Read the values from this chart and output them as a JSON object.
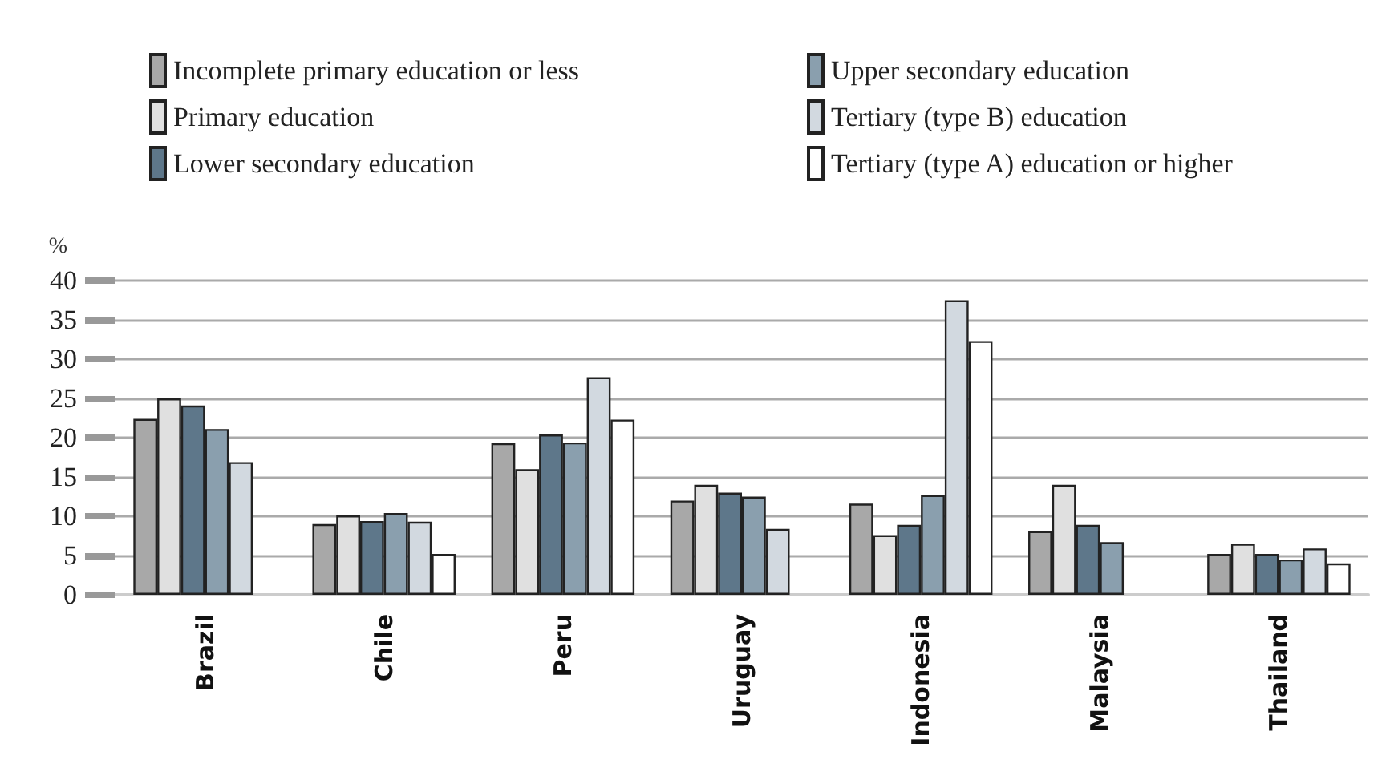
{
  "chart_data": {
    "type": "bar",
    "ylabel": "%",
    "categories": [
      "Brazil",
      "Chile",
      "Peru",
      "Uruguay",
      "Indonesia",
      "Malaysia",
      "Thailand"
    ],
    "series": [
      {
        "name": "Incomplete primary education or less",
        "color": "#a8a8a8",
        "values": [
          22.4,
          9.0,
          19.3,
          12.0,
          11.6,
          8.1,
          5.2
        ]
      },
      {
        "name": "Primary education",
        "color": "#e0e0e0",
        "values": [
          25.0,
          10.1,
          16.0,
          14.0,
          7.6,
          14.0,
          6.5
        ]
      },
      {
        "name": "Lower secondary education",
        "color": "#5e778a",
        "values": [
          24.1,
          9.4,
          20.4,
          13.0,
          8.9,
          8.9,
          5.2
        ]
      },
      {
        "name": "Upper secondary education",
        "color": "#8a9fae",
        "values": [
          21.1,
          10.4,
          19.4,
          12.5,
          12.7,
          6.7,
          4.5
        ]
      },
      {
        "name": "Tertiary (type B) education",
        "color": "#d2d9e0",
        "values": [
          16.9,
          9.3,
          27.7,
          8.4,
          37.5,
          null,
          5.9
        ]
      },
      {
        "name": "Tertiary (type A) education or higher",
        "color": "#ffffff",
        "values": [
          null,
          5.2,
          22.3,
          null,
          32.3,
          null,
          4.0
        ]
      }
    ],
    "ylim": [
      0,
      40
    ],
    "yticks": [
      0,
      5,
      10,
      15,
      20,
      25,
      30,
      35,
      40
    ],
    "grid": "y",
    "legend": "top"
  }
}
